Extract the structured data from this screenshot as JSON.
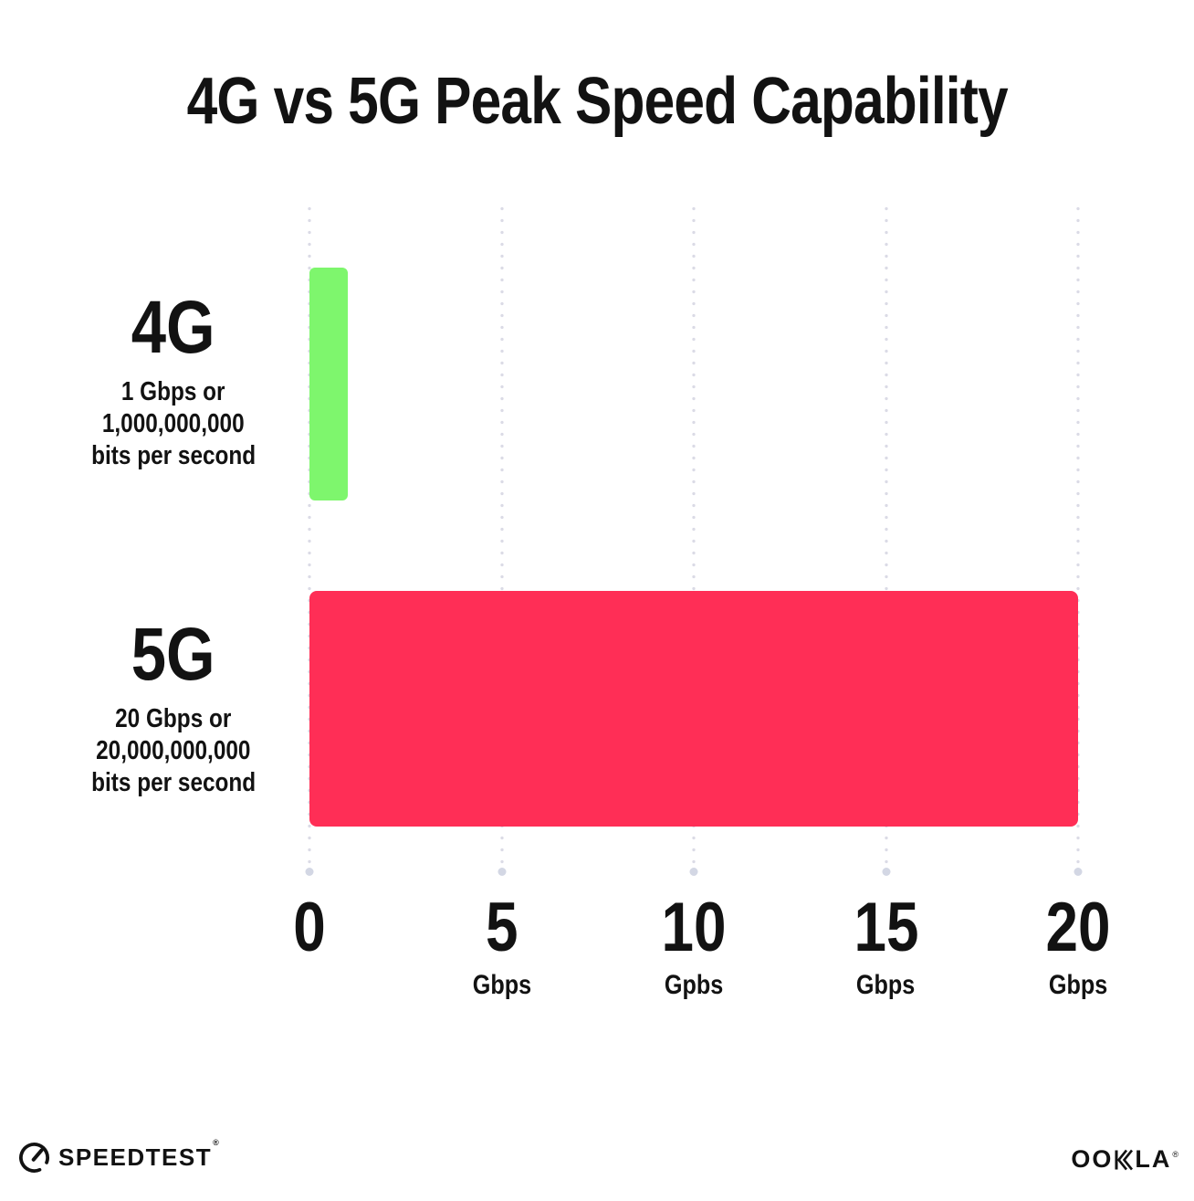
{
  "title": "4G vs 5G Peak Speed Capability",
  "colors": {
    "bar_4g": "#7EF66D",
    "bar_5g": "#FF2E56",
    "grid_dot": "#DBDBE6",
    "grid_end_dot": "#D3D7E4",
    "text": "#121212",
    "background": "#FFFFFF"
  },
  "chart_data": {
    "type": "bar",
    "orientation": "horizontal",
    "title": "4G vs 5G Peak Speed Capability",
    "categories": [
      "4G",
      "5G"
    ],
    "values": [
      1,
      20
    ],
    "value_unit": "Gbps",
    "xlim": [
      0,
      20
    ],
    "x_tick_values": [
      0,
      5,
      10,
      15,
      20
    ],
    "x_tick_labels": [
      {
        "number": "0",
        "unit": ""
      },
      {
        "number": "5",
        "unit": "Gbps"
      },
      {
        "number": "10",
        "unit": "Gpbs"
      },
      {
        "number": "15",
        "unit": "Gbps"
      },
      {
        "number": "20",
        "unit": "Gbps"
      }
    ],
    "bars": [
      {
        "label": "4G",
        "value": 1,
        "color": "#7EF66D",
        "description_lines": [
          "1 Gbps or",
          "1,000,000,000",
          "bits per second"
        ]
      },
      {
        "label": "5G",
        "value": 20,
        "color": "#FF2E56",
        "description_lines": [
          "20 Gbps or",
          "20,000,000,000",
          "bits per second"
        ]
      }
    ],
    "grid": "dotted vertical gridlines at each tick",
    "legend": "none"
  },
  "footer": {
    "speedtest_label": "SPEEDTEST",
    "speedtest_trademark": "®",
    "ookla_label_left": "OO",
    "ookla_label_right": "LA",
    "ookla_full_label": "OOKLA",
    "ookla_trademark": "®"
  }
}
